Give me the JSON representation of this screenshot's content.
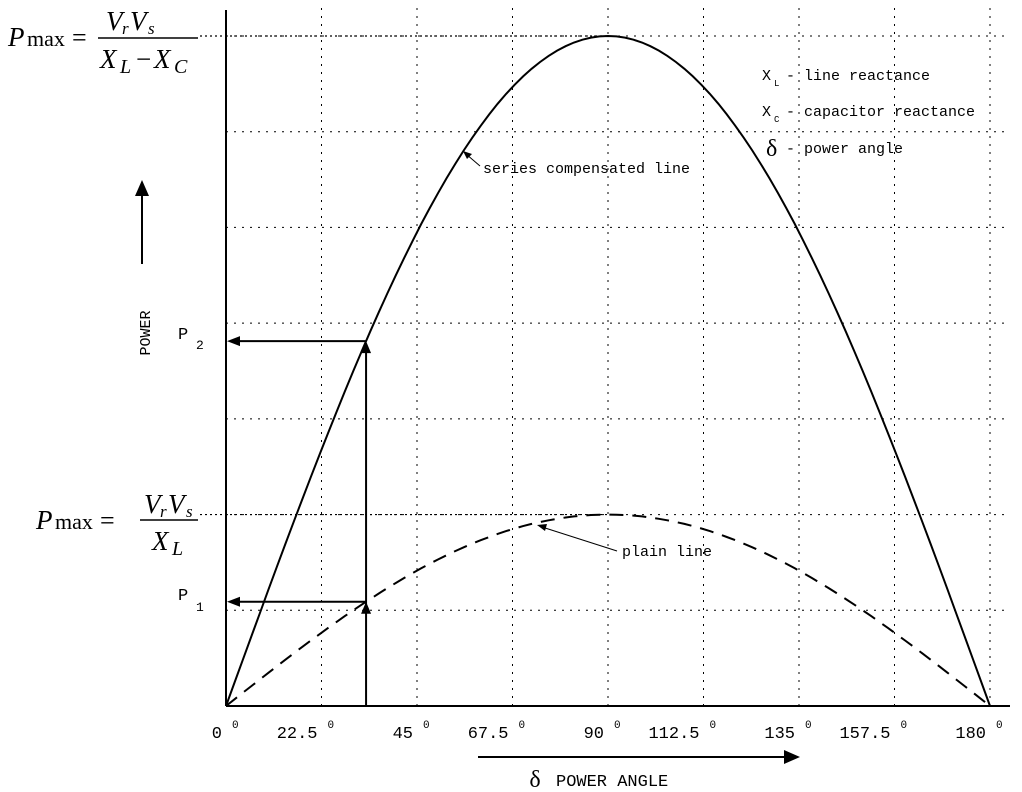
{
  "chart_data": {
    "type": "line",
    "xlabel_symbol": "δ",
    "xlabel": "POWER ANGLE",
    "ylabel": "POWER",
    "x_ticks": [
      {
        "value": 0,
        "label": "0"
      },
      {
        "value": 22.5,
        "label": "22.5"
      },
      {
        "value": 45,
        "label": "45"
      },
      {
        "value": 67.5,
        "label": "67.5"
      },
      {
        "value": 90,
        "label": "90"
      },
      {
        "value": 112.5,
        "label": "112.5"
      },
      {
        "value": 135,
        "label": "135"
      },
      {
        "value": 157.5,
        "label": "157.5"
      },
      {
        "value": 180,
        "label": "180"
      }
    ],
    "degree_symbol": "0",
    "xlim": [
      0,
      180
    ],
    "ylim": [
      0,
      3.5
    ],
    "grid": true,
    "series": [
      {
        "name": "series compensated line",
        "style": "solid",
        "amplitude": 3.5,
        "x": [
          0,
          15,
          30,
          45,
          60,
          75,
          90,
          105,
          120,
          135,
          150,
          165,
          180
        ],
        "y": [
          0,
          0.906,
          1.75,
          2.475,
          3.031,
          3.381,
          3.5,
          3.381,
          3.031,
          2.475,
          1.75,
          0.906,
          0
        ]
      },
      {
        "name": "plain line",
        "style": "dashed",
        "amplitude": 1.0,
        "x": [
          0,
          15,
          30,
          45,
          60,
          75,
          90,
          105,
          120,
          135,
          150,
          165,
          180
        ],
        "y": [
          0,
          0.259,
          0.5,
          0.707,
          0.866,
          0.966,
          1.0,
          0.966,
          0.866,
          0.707,
          0.5,
          0.259,
          0
        ]
      }
    ],
    "operating_angle": 33,
    "annotations": {
      "pmax_label": "P",
      "pmax_sub": "max",
      "pmax_upper_num_a": "V",
      "pmax_upper_num_a_sub": "r",
      "pmax_upper_num_b": "V",
      "pmax_upper_num_b_sub": "s",
      "pmax_upper_den": "X",
      "pmax_upper_den_sub_a": "L",
      "pmax_upper_den_minus": "−",
      "pmax_upper_den_b": "X",
      "pmax_upper_den_sub_b": "C",
      "pmax_lower_den": "X",
      "pmax_lower_den_sub": "L",
      "p2": "P",
      "p2_sub": "2",
      "p1": "P",
      "p1_sub": "1",
      "series_label": "series compensated  line",
      "plain_label": "plain line"
    },
    "legend": [
      {
        "symbol": "X",
        "sub": "L",
        "text": "- line reactance"
      },
      {
        "symbol": "X",
        "sub": "C",
        "text": "- capacitor reactance"
      },
      {
        "symbol": "δ",
        "sub": "",
        "text": "- power angle"
      }
    ]
  }
}
